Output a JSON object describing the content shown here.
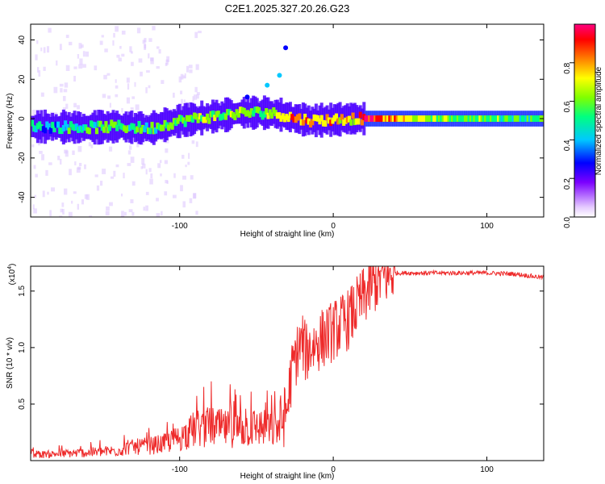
{
  "title": "C2E1.2025.327.20.26.G23",
  "chart_data": [
    {
      "type": "heatmap",
      "name": "spectrogram",
      "xlabel": "Height of straight line (km)",
      "ylabel": "Frequency (Hz)",
      "xlim": [
        -197,
        137
      ],
      "ylim": [
        -50,
        48
      ],
      "xticks": [
        -100,
        0,
        100
      ],
      "xtick_labels": [
        "-100",
        "0",
        "100"
      ],
      "yticks": [
        -40,
        -20,
        0,
        20,
        40
      ],
      "ytick_labels": [
        "-40",
        "-20",
        "0",
        "20",
        "40"
      ],
      "colorbar": {
        "label": "Normalized spectral amplitude",
        "range": [
          0,
          1
        ],
        "ticks": [
          0,
          0.2,
          0.4,
          0.6,
          0.8
        ],
        "tick_labels": [
          "0.0",
          "0.2",
          "0.4",
          "0.6",
          "0.8"
        ],
        "colors": [
          "#e6ccff",
          "#7b00ff",
          "#0000ff",
          "#00c8ff",
          "#00ff80",
          "#80ff00",
          "#ffff00",
          "#ff8000",
          "#ff0000",
          "#ff0080"
        ]
      },
      "ridge": {
        "description": "dominant frequency track",
        "x": [
          -197,
          -160,
          -140,
          -120,
          -100,
          -80,
          -60,
          -45,
          -35,
          -25,
          -15,
          0,
          10,
          20,
          60,
          100,
          137
        ],
        "freq_hz": [
          -4,
          -4.5,
          -4,
          -5,
          -1,
          1,
          3,
          3,
          2,
          0,
          -1,
          -0.5,
          0,
          0,
          0,
          0,
          0
        ],
        "amplitude": [
          0.35,
          0.45,
          0.5,
          0.45,
          0.5,
          0.55,
          0.5,
          0.55,
          0.6,
          0.85,
          0.7,
          0.75,
          0.6,
          0.9,
          0.55,
          0.5,
          0.5
        ]
      },
      "scattered_tones": [
        {
          "x": -35,
          "freq_hz": 22,
          "amplitude": 0.3
        },
        {
          "x": -43,
          "freq_hz": 17,
          "amplitude": 0.35
        },
        {
          "x": -56,
          "freq_hz": 11,
          "amplitude": 0.25
        },
        {
          "x": -31,
          "freq_hz": 36,
          "amplitude": 0.2
        }
      ]
    },
    {
      "type": "line",
      "name": "snr",
      "xlabel": "Height of straight line (km)",
      "ylabel": "SNR (10 * v/v)",
      "y_multiplier": "(x10",
      "y_multiplier_exp": "4",
      "xlim": [
        -197,
        137
      ],
      "ylim": [
        0,
        1.72
      ],
      "xticks": [
        -100,
        0,
        100
      ],
      "xtick_labels": [
        "-100",
        "0",
        "100"
      ],
      "yticks": [
        0.5,
        1.0,
        1.5
      ],
      "ytick_labels": [
        "0.5",
        "1.0",
        "1.5"
      ],
      "color": "#ee2a2a",
      "series": [
        {
          "name": "SNR envelope",
          "x": [
            -197,
            -180,
            -160,
            -140,
            -130,
            -120,
            -110,
            -100,
            -90,
            -80,
            -70,
            -60,
            -50,
            -40,
            -35,
            -30,
            -28,
            -25,
            -22,
            -20,
            -18,
            -15,
            -10,
            -5,
            0,
            5,
            10,
            15,
            20,
            25,
            30,
            40,
            50,
            60,
            80,
            100,
            120,
            130,
            137
          ],
          "y": [
            0.05,
            0.06,
            0.07,
            0.09,
            0.12,
            0.13,
            0.15,
            0.2,
            0.28,
            0.3,
            0.28,
            0.27,
            0.3,
            0.27,
            0.3,
            0.45,
            0.7,
            0.9,
            1.0,
            1.05,
            0.95,
            1.0,
            1.05,
            1.1,
            1.15,
            1.2,
            1.25,
            1.35,
            1.45,
            1.55,
            1.6,
            1.66,
            1.66,
            1.66,
            1.66,
            1.66,
            1.65,
            1.63,
            1.62
          ]
        }
      ]
    }
  ]
}
